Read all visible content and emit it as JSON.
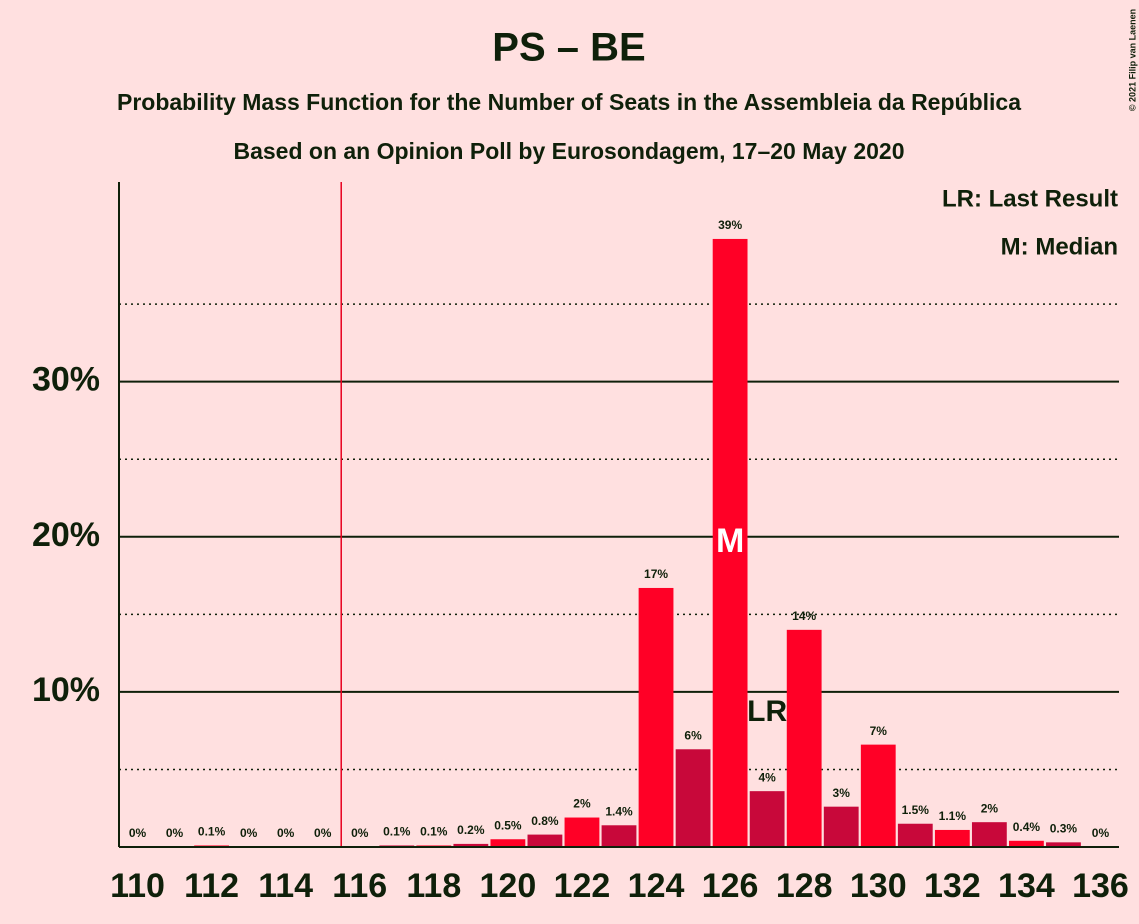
{
  "chart_data": {
    "type": "bar",
    "title": "PS – BE",
    "subtitle": "Probability Mass Function for the Number of Seats in the Assembleia da República",
    "subtitle2": "Based on an Opinion Poll by Eurosondagem, 17–20 May 2020",
    "copyright": "© 2021 Filip van Laenen",
    "legend": [
      "LR: Last Result",
      "M: Median"
    ],
    "categories": [
      110,
      null,
      112,
      null,
      114,
      null,
      116,
      null,
      118,
      null,
      120,
      null,
      122,
      null,
      124,
      null,
      126,
      null,
      128,
      null,
      130,
      null,
      132,
      null,
      134,
      null,
      136
    ],
    "values": [
      0,
      0,
      0.1,
      0,
      0,
      0,
      0,
      0.1,
      0.1,
      0.2,
      0.5,
      0.8,
      1.9,
      1.4,
      16.7,
      6.3,
      39.2,
      3.6,
      14.0,
      2.6,
      6.6,
      1.5,
      1.1,
      1.6,
      0.4,
      0.3,
      0
    ],
    "value_labels": [
      "0%",
      "0%",
      "0.1%",
      "0%",
      "0%",
      "0%",
      "0%",
      "0.1%",
      "0.1%",
      "0.2%",
      "0.5%",
      "0.8%",
      "2%",
      "1.4%",
      "17%",
      "6%",
      "39%",
      "4%",
      "14%",
      "3%",
      "7%",
      "1.5%",
      "1.1%",
      "2%",
      "0.4%",
      "0.3%",
      "0%"
    ],
    "color": "#ff0026",
    "alt_color": "#c8083a",
    "ylim": [
      0,
      43
    ],
    "yticks": [
      {
        "value": 10,
        "label": "10%"
      },
      {
        "value": 20,
        "label": "20%"
      },
      {
        "value": 30,
        "label": "30%"
      }
    ],
    "minor_yticks": [
      5,
      15,
      25,
      35
    ],
    "grid": true,
    "majority": 115.5,
    "majority_color": "#e8001f",
    "median": 126,
    "median_label": "M",
    "last_result": 127,
    "last_result_label": "LR"
  }
}
